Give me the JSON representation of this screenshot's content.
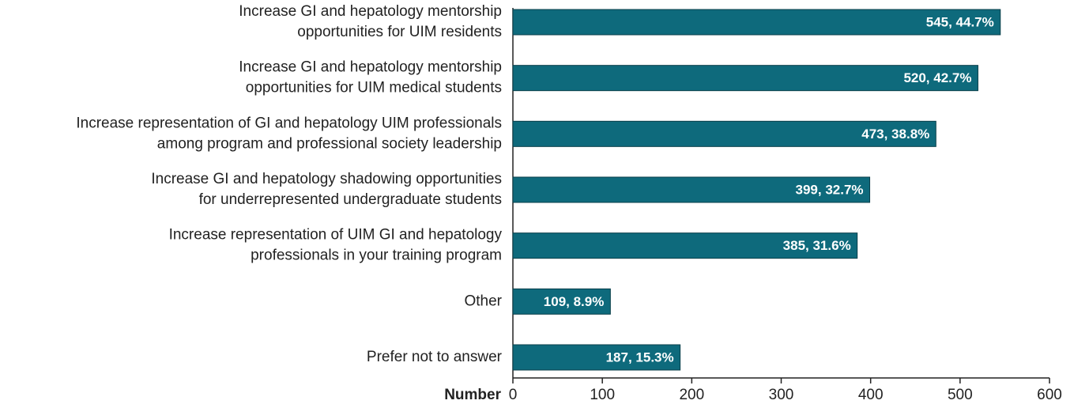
{
  "chart_data": {
    "type": "bar",
    "orientation": "horizontal",
    "categories": [
      "Increase GI and hepatology mentorship\nopportunities for UIM residents",
      "Increase GI and hepatology mentorship\nopportunities for UIM medical students",
      "Increase representation of GI and hepatology UIM professionals\namong program and professional society leadership",
      "Increase GI and hepatology shadowing opportunities\nfor underrepresented undergraduate students",
      "Increase representation of UIM GI and hepatology\nprofessionals in your training program",
      "Other",
      "Prefer not to answer"
    ],
    "values": [
      545,
      520,
      473,
      399,
      385,
      109,
      187
    ],
    "value_labels": [
      "545, 44.7%",
      "520, 42.7%",
      "473, 38.8%",
      "399, 32.7%",
      "385, 31.6%",
      "109, 8.9%",
      "187, 15.3%"
    ],
    "color": "#0e6a7c",
    "x_label": "Number",
    "xlim": [
      0,
      600
    ],
    "xticks": [
      0,
      100,
      200,
      300,
      400,
      500,
      600
    ]
  }
}
